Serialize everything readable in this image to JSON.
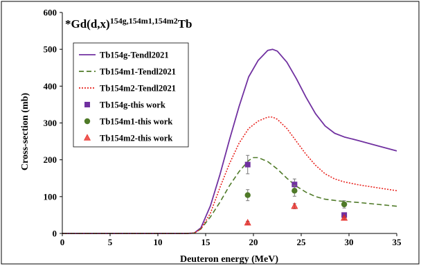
{
  "chart_data": {
    "type": "line",
    "title": {
      "prefix": "*Gd(d,x)",
      "superscript": "154g,154m1,154m2",
      "suffix": "Tb"
    },
    "xlabel": "Deuteron energy (MeV)",
    "ylabel": "Cross-section (mb)",
    "xlim": [
      0,
      35
    ],
    "ylim": [
      0,
      600
    ],
    "xticks": [
      0,
      5,
      10,
      15,
      20,
      25,
      30,
      35
    ],
    "yticks": [
      0,
      100,
      200,
      300,
      400,
      500,
      600
    ],
    "grid": false,
    "legend_position": "top-left",
    "line_series": [
      {
        "name": "Tb154g-Tendl2021",
        "color": "#7030a0",
        "style": "solid",
        "points": [
          [
            0,
            0
          ],
          [
            13,
            0
          ],
          [
            13.8,
            1
          ],
          [
            14.5,
            15
          ],
          [
            15.5,
            75
          ],
          [
            16.5,
            160
          ],
          [
            17.5,
            255
          ],
          [
            18.5,
            345
          ],
          [
            19.5,
            425
          ],
          [
            20.5,
            470
          ],
          [
            21.5,
            497
          ],
          [
            22,
            500
          ],
          [
            22.5,
            495
          ],
          [
            23.5,
            465
          ],
          [
            24.5,
            420
          ],
          [
            25.5,
            370
          ],
          [
            26.5,
            325
          ],
          [
            27.5,
            292
          ],
          [
            28.5,
            272
          ],
          [
            29.5,
            262
          ],
          [
            31,
            252
          ],
          [
            33,
            238
          ],
          [
            35,
            224
          ]
        ]
      },
      {
        "name": "Tb154m1-Tendl2021",
        "color": "#4f7a28",
        "style": "dashed",
        "points": [
          [
            0,
            0
          ],
          [
            13,
            0
          ],
          [
            13.8,
            1
          ],
          [
            14.5,
            12
          ],
          [
            15.5,
            45
          ],
          [
            16.5,
            85
          ],
          [
            17.5,
            130
          ],
          [
            18.5,
            168
          ],
          [
            19.5,
            198
          ],
          [
            20,
            206
          ],
          [
            20.5,
            206
          ],
          [
            21.5,
            195
          ],
          [
            22.5,
            175
          ],
          [
            23.5,
            150
          ],
          [
            24.5,
            128
          ],
          [
            25.5,
            112
          ],
          [
            26.5,
            100
          ],
          [
            27.5,
            93
          ],
          [
            29,
            88
          ],
          [
            31,
            84
          ],
          [
            33,
            79
          ],
          [
            35,
            74
          ]
        ]
      },
      {
        "name": "Tb154m2-Tendl2021",
        "color": "#e8211c",
        "style": "dotted",
        "points": [
          [
            0,
            0
          ],
          [
            13,
            0
          ],
          [
            13.8,
            1
          ],
          [
            14.5,
            12
          ],
          [
            15.5,
            55
          ],
          [
            16.5,
            125
          ],
          [
            17.5,
            190
          ],
          [
            18.5,
            245
          ],
          [
            19.5,
            285
          ],
          [
            20.5,
            305
          ],
          [
            21.5,
            316
          ],
          [
            22,
            316
          ],
          [
            22.5,
            310
          ],
          [
            23.5,
            285
          ],
          [
            24.5,
            250
          ],
          [
            25.5,
            215
          ],
          [
            26.5,
            185
          ],
          [
            27.5,
            162
          ],
          [
            28.5,
            148
          ],
          [
            29.5,
            140
          ],
          [
            31,
            132
          ],
          [
            33,
            124
          ],
          [
            35,
            116
          ]
        ]
      }
    ],
    "scatter_series": [
      {
        "name": "Tb154g-this work",
        "color": "#7030a0",
        "marker": "square",
        "points": [
          [
            19.4,
            187,
            25
          ],
          [
            24.3,
            133,
            15
          ],
          [
            29.5,
            50,
            5
          ]
        ]
      },
      {
        "name": "Tb154m1-this work",
        "color": "#4f7a28",
        "marker": "circle",
        "points": [
          [
            19.4,
            104,
            15
          ],
          [
            24.3,
            116,
            15
          ],
          [
            29.5,
            79,
            10
          ]
        ]
      },
      {
        "name": "Tb154m2-this work",
        "color": "#e8211c",
        "marker": "triangle",
        "points": [
          [
            19.4,
            29,
            4
          ],
          [
            24.3,
            74,
            7
          ],
          [
            29.5,
            42,
            4
          ]
        ]
      }
    ]
  }
}
